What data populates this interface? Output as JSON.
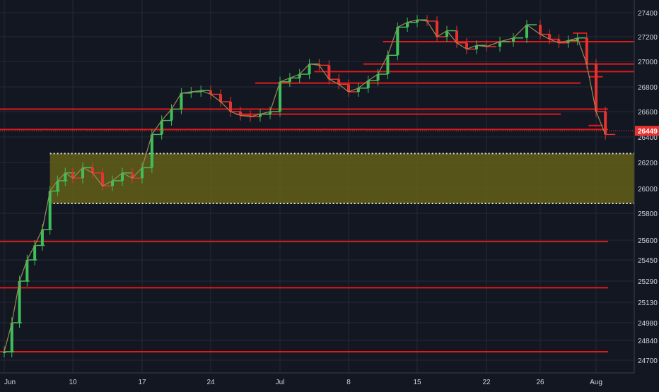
{
  "colors": {
    "background": "#131722",
    "grid": "#242a36",
    "axis_text": "#d1d4dc",
    "level_line": "#e0191b",
    "zone_fill": "#6e6a16",
    "zone_border": "#e8e8e8",
    "up": "#3fbf58",
    "down": "#e8322f",
    "trend": "#9a8a58",
    "price_tag": "#e8322f"
  },
  "chart_data": {
    "type": "line",
    "title": "",
    "xlabel": "",
    "ylabel": "",
    "y_scale": "piecewise",
    "y_ticks": [
      24700,
      24840,
      24980,
      25130,
      25290,
      25450,
      25600,
      25800,
      26000,
      26200,
      26400,
      26600,
      26800,
      27000,
      27200,
      27400
    ],
    "x_ticks": [
      {
        "label": "Jun",
        "day": 0
      },
      {
        "label": "10",
        "day": 9
      },
      {
        "label": "17",
        "day": 16
      },
      {
        "label": "24",
        "day": 23
      },
      {
        "label": "Jul",
        "day": 30
      },
      {
        "label": "8",
        "day": 37
      },
      {
        "label": "15",
        "day": 44
      },
      {
        "label": "22",
        "day": 51
      },
      {
        "label": "26",
        "day": 55
      },
      {
        "label": "Aug",
        "day": 61
      }
    ],
    "current_price": {
      "label": "26449",
      "value": 26449
    },
    "zone": {
      "y_from": 25880,
      "y_to": 26270,
      "start_day": 6
    },
    "levels": [
      {
        "value": 26620,
        "from_day": -1
      },
      {
        "value": 26460,
        "from_day": -1
      },
      {
        "value": 25590,
        "from_day": -1
      },
      {
        "value": 25240,
        "from_day": -1
      },
      {
        "value": 24760,
        "from_day": -1
      },
      {
        "value": 27230,
        "from_day": 58.5
      },
      {
        "value": 26880,
        "from_day": 60.2
      },
      {
        "value": 26490,
        "from_day": 60.2
      },
      {
        "value": 26580,
        "from_day": 25.5
      },
      {
        "value": 26980,
        "from_day": 38.5
      },
      {
        "value": 27160,
        "from_day": 40.5
      },
      {
        "value": 26830,
        "from_day": 27.5
      },
      {
        "value": 26920,
        "from_day": 33.5
      }
    ],
    "series": [
      {
        "kind": "trend",
        "x": [
          0,
          1,
          2,
          3,
          4,
          5,
          6,
          7,
          8,
          9,
          10,
          11,
          12,
          13,
          14,
          15,
          16,
          17,
          18,
          19,
          20,
          21,
          22,
          23,
          24,
          25,
          26,
          27,
          28,
          29,
          30,
          31,
          32,
          33,
          34,
          35,
          36,
          37,
          38,
          39,
          40,
          41,
          42,
          43,
          44,
          45,
          46,
          47,
          48,
          49,
          50,
          51,
          52,
          53,
          54,
          55,
          56,
          57,
          58,
          59,
          60,
          61,
          62
        ],
        "y": [
          24760,
          24980,
          25290,
          25450,
          25560,
          25680,
          25980,
          26060,
          26120,
          26080,
          26160,
          26120,
          26020,
          26060,
          26120,
          26080,
          26160,
          26420,
          26530,
          26620,
          26750,
          26760,
          26770,
          26740,
          26680,
          26600,
          26570,
          26560,
          26580,
          26600,
          26840,
          26870,
          26900,
          26980,
          26970,
          26860,
          26820,
          26760,
          26790,
          26850,
          26900,
          27050,
          27280,
          27320,
          27340,
          27330,
          27200,
          27250,
          27150,
          27100,
          27130,
          27120,
          27160,
          27190,
          27300,
          27220,
          27180,
          27150,
          27170,
          27190,
          26980,
          26600,
          26420
        ]
      }
    ]
  }
}
